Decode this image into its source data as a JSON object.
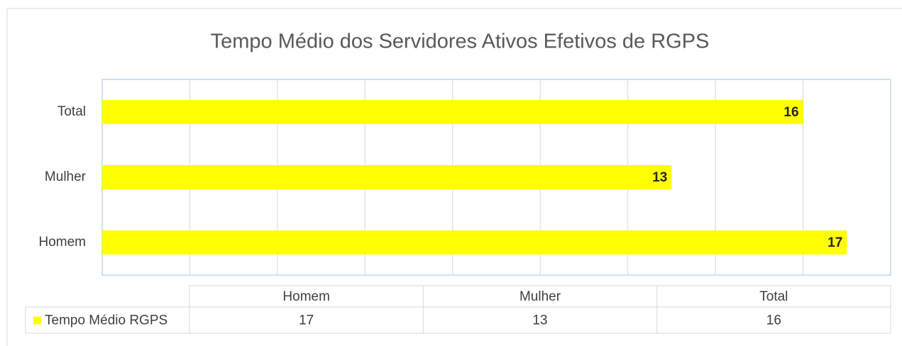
{
  "chart_data": {
    "type": "bar",
    "orientation": "horizontal",
    "title": "Tempo Médio dos Servidores Ativos Efetivos de RGPS",
    "categories": [
      "Homem",
      "Mulher",
      "Total"
    ],
    "series": [
      {
        "name": "Tempo Médio RGPS",
        "color": "#ffff00",
        "values": [
          17,
          13,
          16
        ]
      }
    ],
    "xlim": [
      0,
      18
    ],
    "xticks": [
      0,
      2,
      4,
      6,
      8,
      10,
      12,
      14,
      16,
      18
    ],
    "grid": true,
    "data_table": true
  }
}
